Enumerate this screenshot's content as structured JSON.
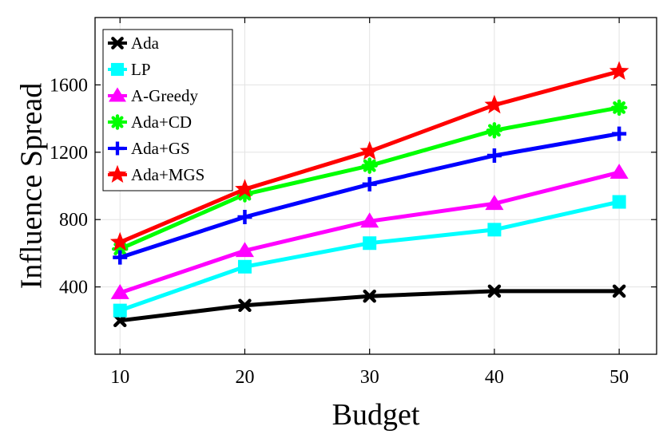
{
  "chart_data": {
    "type": "line",
    "title": "",
    "xlabel": "Budget",
    "ylabel": "Influence Spread",
    "x": [
      10,
      20,
      30,
      40,
      50
    ],
    "xlim": [
      8,
      53
    ],
    "ylim": [
      0,
      2000
    ],
    "xticks": [
      10,
      20,
      30,
      40,
      50
    ],
    "yticks": [
      400,
      800,
      1200,
      1600
    ],
    "grid": true,
    "legend_position": "top-left",
    "series": [
      {
        "name": "Ada",
        "color": "#000000",
        "marker": "x",
        "values": [
          200,
          290,
          345,
          375,
          375
        ]
      },
      {
        "name": "LP",
        "color": "#00ffff",
        "marker": "square",
        "values": [
          260,
          520,
          660,
          740,
          905
        ]
      },
      {
        "name": "A-Greedy",
        "color": "#ff00ff",
        "marker": "triangle",
        "values": [
          365,
          615,
          790,
          895,
          1080
        ]
      },
      {
        "name": "Ada+CD",
        "color": "#00ff00",
        "marker": "asterisk",
        "values": [
          625,
          950,
          1120,
          1330,
          1465
        ]
      },
      {
        "name": "Ada+GS",
        "color": "#0000ff",
        "marker": "plus",
        "values": [
          575,
          815,
          1010,
          1180,
          1310
        ]
      },
      {
        "name": "Ada+MGS",
        "color": "#ff0000",
        "marker": "star",
        "values": [
          665,
          980,
          1205,
          1480,
          1680
        ]
      }
    ]
  }
}
